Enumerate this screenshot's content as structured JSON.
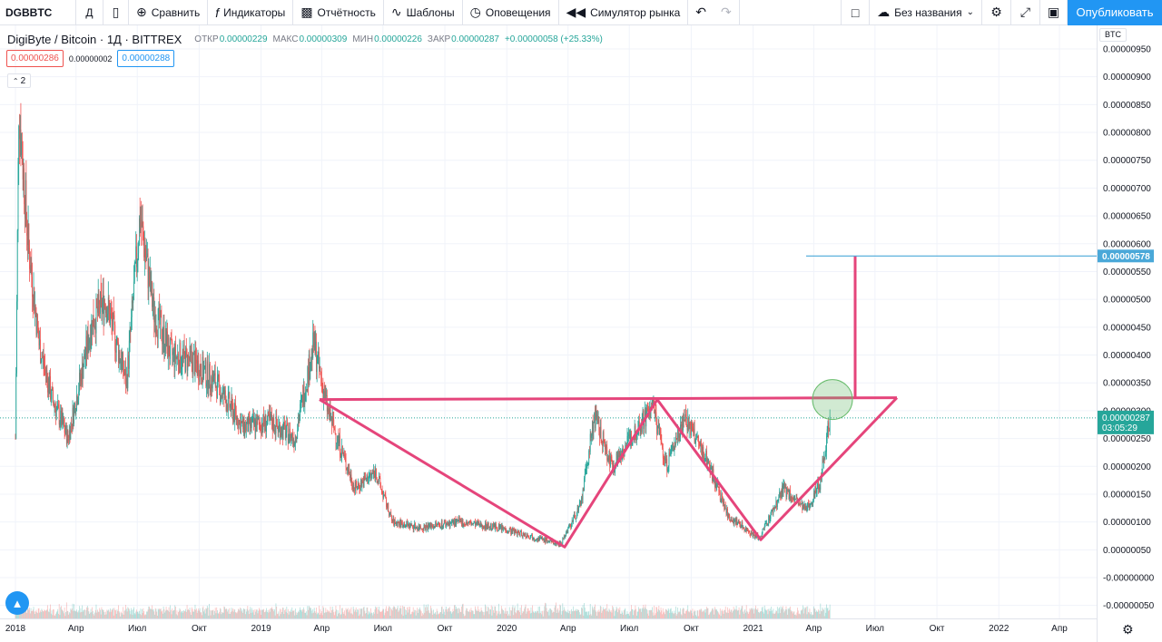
{
  "toolbar": {
    "symbol": "DGBBTC",
    "interval": "Д",
    "compare": "Сравнить",
    "indicators": "Индикаторы",
    "financials": "Отчётность",
    "templates": "Шаблоны",
    "alerts": "Оповещения",
    "replay": "Симулятор рынка",
    "layout_name": "Без названия",
    "publish": "Опубликовать"
  },
  "legend": {
    "title": "DigiByte / Bitcoin · 1Д · BITTREX",
    "open_label": "ОТКР",
    "open": "0.00000229",
    "high_label": "МАКС",
    "high": "0.00000309",
    "low_label": "МИН",
    "low": "0.00000226",
    "close_label": "ЗАКР",
    "close": "0.00000287",
    "change": "+0.00000058 (+25.33%)",
    "bid": "0.00000286",
    "spread": "0.00000002",
    "ask": "0.00000288",
    "collapse_count": "2"
  },
  "colors": {
    "up": "#26a69a",
    "down": "#ef5350",
    "pattern": "#e5457b",
    "target_line": "#4aa8d8",
    "highlight_circle": "#66bb6a",
    "accent": "#2196f3"
  },
  "chart_data": {
    "type": "candlestick",
    "currency_label": "BTC",
    "y_ticks": [
      "0.00000950",
      "0.00000900",
      "0.00000850",
      "0.00000800",
      "0.00000750",
      "0.00000700",
      "0.00000650",
      "0.00000600",
      "0.00000550",
      "0.00000500",
      "0.00000450",
      "0.00000400",
      "0.00000350",
      "0.00000300",
      "0.00000250",
      "0.00000200",
      "0.00000150",
      "0.00000100",
      "0.00000050",
      "-0.00000000",
      "-0.00000050"
    ],
    "ylim": [
      -6e-07,
      9.6e-06
    ],
    "x_ticks": [
      "2018",
      "Апр",
      "Июл",
      "Окт",
      "2019",
      "Апр",
      "Июл",
      "Окт",
      "2020",
      "Апр",
      "Июл",
      "Окт",
      "2021",
      "Апр",
      "Июл",
      "Окт",
      "2022",
      "Апр"
    ],
    "x_tick_dates": [
      "2018-01-01",
      "2018-04-01",
      "2018-07-01",
      "2018-10-01",
      "2019-01-01",
      "2019-04-01",
      "2019-07-01",
      "2019-10-01",
      "2020-01-01",
      "2020-04-01",
      "2020-07-01",
      "2020-10-01",
      "2021-01-01",
      "2021-04-01",
      "2021-07-01",
      "2021-10-01",
      "2022-01-01",
      "2022-04-01"
    ],
    "xlim": [
      "2018-01-01",
      "2022-06-01"
    ],
    "price_path": [
      {
        "date": "2018-01-01",
        "price": 2.5e-06
      },
      {
        "date": "2018-01-06",
        "price": 8.5e-06
      },
      {
        "date": "2018-01-20",
        "price": 6e-06
      },
      {
        "date": "2018-02-05",
        "price": 4.2e-06
      },
      {
        "date": "2018-02-25",
        "price": 3.2e-06
      },
      {
        "date": "2018-03-20",
        "price": 2.5e-06
      },
      {
        "date": "2018-04-25",
        "price": 4.6e-06
      },
      {
        "date": "2018-05-15",
        "price": 5e-06
      },
      {
        "date": "2018-06-15",
        "price": 3.5e-06
      },
      {
        "date": "2018-07-05",
        "price": 6.5e-06
      },
      {
        "date": "2018-07-25",
        "price": 4.8e-06
      },
      {
        "date": "2018-08-20",
        "price": 4e-06
      },
      {
        "date": "2018-09-20",
        "price": 3.9e-06
      },
      {
        "date": "2018-10-25",
        "price": 3.5e-06
      },
      {
        "date": "2018-12-05",
        "price": 2.7e-06
      },
      {
        "date": "2019-01-15",
        "price": 2.8e-06
      },
      {
        "date": "2019-02-20",
        "price": 2.5e-06
      },
      {
        "date": "2019-03-20",
        "price": 4.2e-06
      },
      {
        "date": "2019-04-10",
        "price": 3e-06
      },
      {
        "date": "2019-05-20",
        "price": 1.6e-06
      },
      {
        "date": "2019-06-20",
        "price": 1.9e-06
      },
      {
        "date": "2019-07-15",
        "price": 1e-06
      },
      {
        "date": "2019-08-25",
        "price": 9e-07
      },
      {
        "date": "2019-10-20",
        "price": 1e-06
      },
      {
        "date": "2019-12-20",
        "price": 9e-07
      },
      {
        "date": "2020-03-20",
        "price": 6e-07
      },
      {
        "date": "2020-04-20",
        "price": 1.3e-06
      },
      {
        "date": "2020-05-10",
        "price": 2.9e-06
      },
      {
        "date": "2020-06-05",
        "price": 2e-06
      },
      {
        "date": "2020-08-05",
        "price": 3.1e-06
      },
      {
        "date": "2020-08-25",
        "price": 2e-06
      },
      {
        "date": "2020-09-20",
        "price": 2.9e-06
      },
      {
        "date": "2020-10-25",
        "price": 2.1e-06
      },
      {
        "date": "2020-11-25",
        "price": 1.1e-06
      },
      {
        "date": "2021-01-10",
        "price": 7e-07
      },
      {
        "date": "2021-02-15",
        "price": 1.6e-06
      },
      {
        "date": "2021-03-20",
        "price": 1.2e-06
      },
      {
        "date": "2021-04-10",
        "price": 1.7e-06
      },
      {
        "date": "2021-04-25",
        "price": 2.9e-06
      }
    ],
    "current_price": "0.00000287",
    "countdown": "03:05:29",
    "target_price": "0.00000578",
    "pattern_neckline": 3.2e-06,
    "pattern_points": [
      {
        "date": "2019-03-25",
        "price": 3.2e-06
      },
      {
        "date": "2020-03-15",
        "price": 5e-07
      },
      {
        "date": "2020-08-10",
        "price": 3.2e-06
      },
      {
        "date": "2021-01-10",
        "price": 7e-07
      },
      {
        "date": "2021-07-15",
        "price": 3.2e-06
      }
    ]
  }
}
